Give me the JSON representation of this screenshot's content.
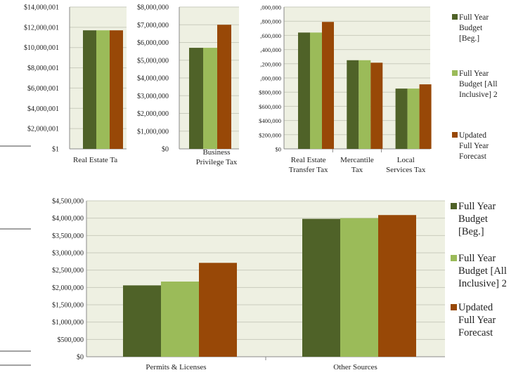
{
  "colors": {
    "plot_bg": "#eef0e2",
    "grid": "#c9ccbd",
    "axis": "#8a8a8a"
  },
  "chart_data": [
    {
      "type": "bar",
      "categories": [
        "Real Estate Tax"
      ],
      "category_display": [
        "Real Estate Ta"
      ],
      "series": [
        {
          "name": "Full Year Budget [Beg.]",
          "values": [
            11700000
          ],
          "color": "#4f6228"
        },
        {
          "name": "Full Year Budget [All Inclusive] 2",
          "values": [
            11700000
          ],
          "color": "#9bbb59"
        },
        {
          "name": "Updated Full Year Forecast",
          "values": [
            11700000
          ],
          "color": "#984807"
        }
      ],
      "ylim": [
        1,
        14000001
      ],
      "yticks": [
        "$1",
        "$2,000,001",
        "$4,000,001",
        "$6,000,001",
        "$8,000,001",
        "$10,000,001",
        "$12,000,001",
        "$14,000,001"
      ],
      "grid": true
    },
    {
      "type": "bar",
      "categories": [
        "Business Privilege Tax"
      ],
      "category_lines": [
        [
          "Business",
          "Privilege Tax"
        ]
      ],
      "series": [
        {
          "name": "Full Year Budget [Beg.]",
          "values": [
            5700000
          ],
          "color": "#4f6228"
        },
        {
          "name": "Full Year Budget [All Inclusive] 2",
          "values": [
            5700000
          ],
          "color": "#9bbb59"
        },
        {
          "name": "Updated Full Year Forecast",
          "values": [
            7000000
          ],
          "color": "#984807"
        }
      ],
      "ylim": [
        0,
        8000000
      ],
      "yticks": [
        "$0",
        "$1,000,000",
        "$2,000,000",
        "$3,000,000",
        "$4,000,000",
        "$5,000,000",
        "$6,000,000",
        "$7,000,000",
        "$8,000,000"
      ],
      "grid": true
    },
    {
      "type": "bar",
      "categories": [
        "Real Estate Transfer Tax",
        "Mercantile Tax",
        "Local Services Tax"
      ],
      "category_lines": [
        [
          "Real Estate",
          "Transfer Tax"
        ],
        [
          "Mercantile",
          "Tax"
        ],
        [
          "Local",
          "Services Tax"
        ]
      ],
      "series": [
        {
          "name": "Full Year Budget [Beg.]",
          "values": [
            1640000,
            1250000,
            850000
          ],
          "color": "#4f6228"
        },
        {
          "name": "Full Year Budget [All Inclusive] 2",
          "values": [
            1640000,
            1250000,
            850000
          ],
          "color": "#9bbb59"
        },
        {
          "name": "Updated Full Year Forecast",
          "values": [
            1790000,
            1215000,
            910000
          ],
          "color": "#984807"
        }
      ],
      "ylim": [
        0,
        2000000
      ],
      "yticks": [
        "$0",
        "$200,000",
        "$400,000",
        "$600,000",
        "$800,000",
        ",000,000",
        ",200,000",
        ",400,000",
        ",600,000",
        ",800,000",
        ",000,000"
      ],
      "grid": true,
      "legend": "right",
      "legend_lines": [
        [
          "Full Year",
          "Budget",
          "[Beg.]"
        ],
        [
          "Full Year",
          "Budget [All",
          "Inclusive] 2"
        ],
        [
          "Updated",
          "Full Year",
          "Forecast"
        ]
      ]
    },
    {
      "type": "bar",
      "categories": [
        "Permits & Licenses",
        "Other Sources"
      ],
      "series": [
        {
          "name": "Full Year Budget [Beg.]",
          "values": [
            2060000,
            3980000
          ],
          "color": "#4f6228"
        },
        {
          "name": "Full Year Budget [All Inclusive] 2",
          "values": [
            2170000,
            4000000
          ],
          "color": "#9bbb59"
        },
        {
          "name": "Updated Full Year Forecast",
          "values": [
            2710000,
            4090000
          ],
          "color": "#984807"
        }
      ],
      "ylim": [
        0,
        4500000
      ],
      "yticks": [
        "$0",
        "$500,000",
        "$1,000,000",
        "$1,500,000",
        "$2,000,000",
        "$2,500,000",
        "$3,000,000",
        "$3,500,000",
        "$4,000,000",
        "$4,500,000"
      ],
      "grid": true,
      "legend": "right",
      "legend_lines": [
        [
          "Full Year",
          "Budget",
          "[Beg.]"
        ],
        [
          "Full Year",
          "Budget [All",
          "Inclusive] 2"
        ],
        [
          "Updated",
          "Full Year",
          "Forecast"
        ]
      ]
    }
  ]
}
